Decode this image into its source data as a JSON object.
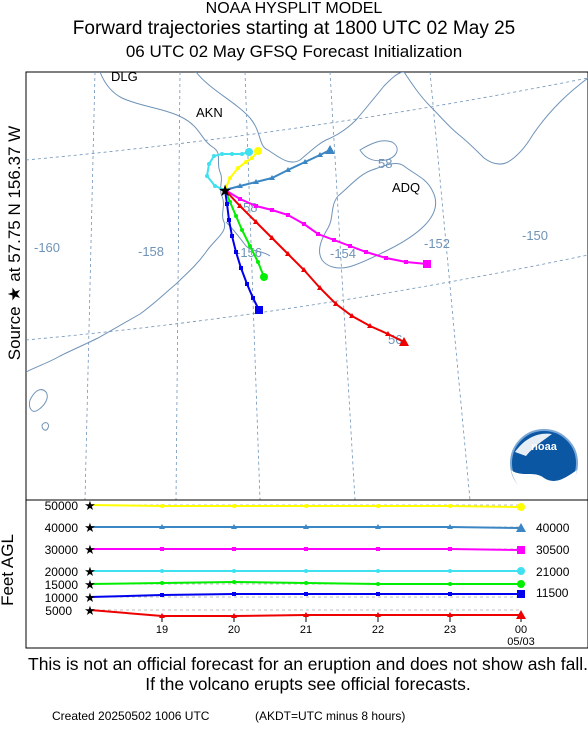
{
  "titles": {
    "model": "NOAA HYSPLIT MODEL",
    "main": "Forward trajectories starting at 1800 UTC 02 May 25",
    "sub": "06 UTC 02 May    GFSQ  Forecast Initialization"
  },
  "source_label": "Source ★ at   57.75 N  156.37 W",
  "altitude_axis_label": "Feet AGL",
  "map": {
    "place_labels": [
      {
        "text": "DLG"
      },
      {
        "text": "AKN"
      },
      {
        "text": "ADQ"
      }
    ],
    "longitude_labels": [
      "-160",
      "-158",
      "-156",
      "-154",
      "-152",
      "-150"
    ],
    "latitude_labels": [
      "58",
      "58",
      "56"
    ],
    "colors": {
      "land": "#6f93b8",
      "grid": "#6f93b8"
    }
  },
  "altitude_panel": {
    "left_labels": [
      "50000",
      "40000",
      "30000",
      "20000",
      "15000",
      "10000",
      "5000"
    ],
    "right_labels": [
      "40000",
      "30500",
      "21000",
      "11500"
    ],
    "x_ticks": [
      "19",
      "20",
      "21",
      "22",
      "23",
      "00"
    ],
    "date_label": "05/03"
  },
  "trajectories": [
    {
      "color": "#ffff00",
      "marker": "circle",
      "start_altitude_ft": 50000
    },
    {
      "color": "#3b86c4",
      "marker": "triangle",
      "start_altitude_ft": 40000
    },
    {
      "color": "#ff00ff",
      "marker": "square",
      "start_altitude_ft": 30000
    },
    {
      "color": "#3fe0f0",
      "marker": "circle",
      "start_altitude_ft": 20000
    },
    {
      "color": "#00ee00",
      "marker": "circle",
      "start_altitude_ft": 15000
    },
    {
      "color": "#0000ee",
      "marker": "square",
      "start_altitude_ft": 10000
    },
    {
      "color": "#ee0000",
      "marker": "triangle",
      "start_altitude_ft": 5000
    }
  ],
  "logo": {
    "text": "noaa"
  },
  "disclaimer": "This is not an official forecast for an eruption and does not show ash fall. If the volcano erupts see official forecasts.",
  "footer": {
    "created": "Created 20250502 1006 UTC",
    "akdt": "(AKDT=UTC minus 8 hours)"
  }
}
